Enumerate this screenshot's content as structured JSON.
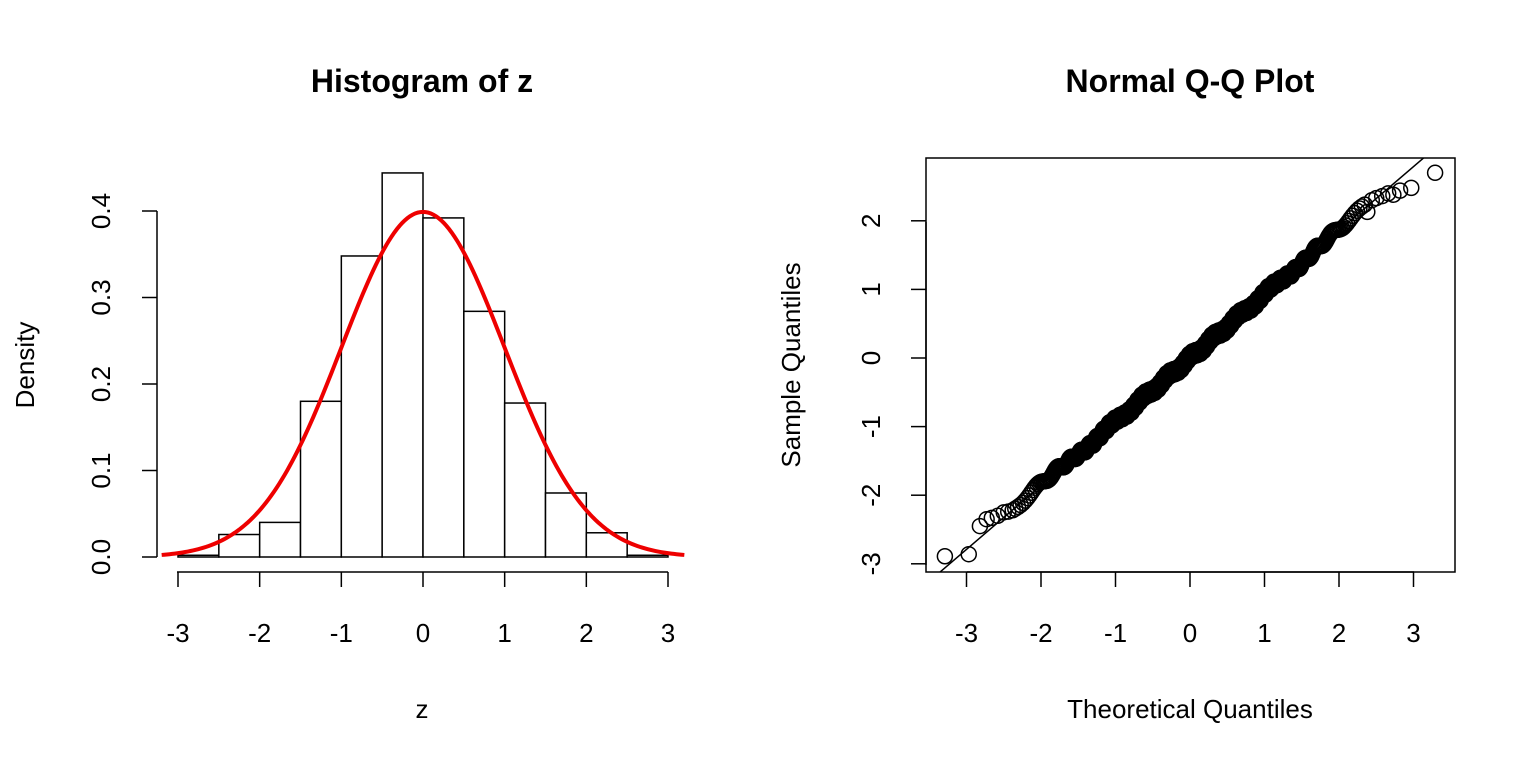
{
  "chart_data": [
    {
      "type": "bar",
      "title": "Histogram of z",
      "xlabel": "z",
      "ylabel": "Density",
      "bins": [
        {
          "from": -3.0,
          "to": -2.5,
          "density": 0.002
        },
        {
          "from": -2.5,
          "to": -2.0,
          "density": 0.026
        },
        {
          "from": -2.0,
          "to": -1.5,
          "density": 0.04
        },
        {
          "from": -1.5,
          "to": -1.0,
          "density": 0.18
        },
        {
          "from": -1.0,
          "to": -0.5,
          "density": 0.348
        },
        {
          "from": -0.5,
          "to": 0.0,
          "density": 0.444
        },
        {
          "from": 0.0,
          "to": 0.5,
          "density": 0.392
        },
        {
          "from": 0.5,
          "to": 1.0,
          "density": 0.284
        },
        {
          "from": 1.0,
          "to": 1.5,
          "density": 0.178
        },
        {
          "from": 1.5,
          "to": 2.0,
          "density": 0.074
        },
        {
          "from": 2.0,
          "to": 2.5,
          "density": 0.028
        },
        {
          "from": 2.5,
          "to": 3.0,
          "density": 0.002
        }
      ],
      "overlay_curve": {
        "kind": "normal-density",
        "mean": 0,
        "sd": 1,
        "x_range": [
          -3.2,
          3.2
        ],
        "color": "#ee0000"
      },
      "xlim": [
        -3.2,
        3.2
      ],
      "ylim": [
        0,
        0.45
      ],
      "x_ticks": [
        "-3",
        "-2",
        "-1",
        "0",
        "1",
        "2",
        "3"
      ],
      "y_ticks": [
        "0.0",
        "0.1",
        "0.2",
        "0.3",
        "0.4"
      ],
      "grid": false,
      "box": false,
      "colors": {
        "bar_fill": "#ffffff",
        "bar_stroke": "#000000",
        "curve": "#ee0000"
      }
    },
    {
      "type": "scatter",
      "title": "Normal Q-Q Plot",
      "xlabel": "Theoretical Quantiles",
      "ylabel": "Sample Quantiles",
      "n_points": 1000,
      "reference_line": {
        "intercept": 0,
        "slope": 0.93
      },
      "outer_points": [
        {
          "x": -3.29,
          "y": -2.89
        },
        {
          "x": -2.97,
          "y": -2.86
        },
        {
          "x": -2.82,
          "y": -2.45
        },
        {
          "x": -2.73,
          "y": -2.35
        },
        {
          "x": -2.66,
          "y": -2.33
        },
        {
          "x": -2.58,
          "y": -2.3
        },
        {
          "x": -2.5,
          "y": -2.25
        },
        {
          "x": -2.44,
          "y": -2.24
        },
        {
          "x": -2.38,
          "y": -2.22
        },
        {
          "x": 2.38,
          "y": 2.13
        },
        {
          "x": 2.44,
          "y": 2.3
        },
        {
          "x": 2.5,
          "y": 2.33
        },
        {
          "x": 2.58,
          "y": 2.36
        },
        {
          "x": 2.66,
          "y": 2.4
        },
        {
          "x": 2.73,
          "y": 2.38
        },
        {
          "x": 2.82,
          "y": 2.44
        },
        {
          "x": 2.97,
          "y": 2.48
        },
        {
          "x": 3.29,
          "y": 2.7
        }
      ],
      "xlim": [
        -3.5,
        3.5
      ],
      "ylim": [
        -3.05,
        2.9
      ],
      "x_ticks": [
        "-3",
        "-2",
        "-1",
        "0",
        "1",
        "2",
        "3"
      ],
      "y_ticks": [
        "-3",
        "-2",
        "-1",
        "0",
        "1",
        "2"
      ],
      "grid": false,
      "box": true,
      "colors": {
        "points": "#000000",
        "line": "#000000"
      }
    }
  ]
}
